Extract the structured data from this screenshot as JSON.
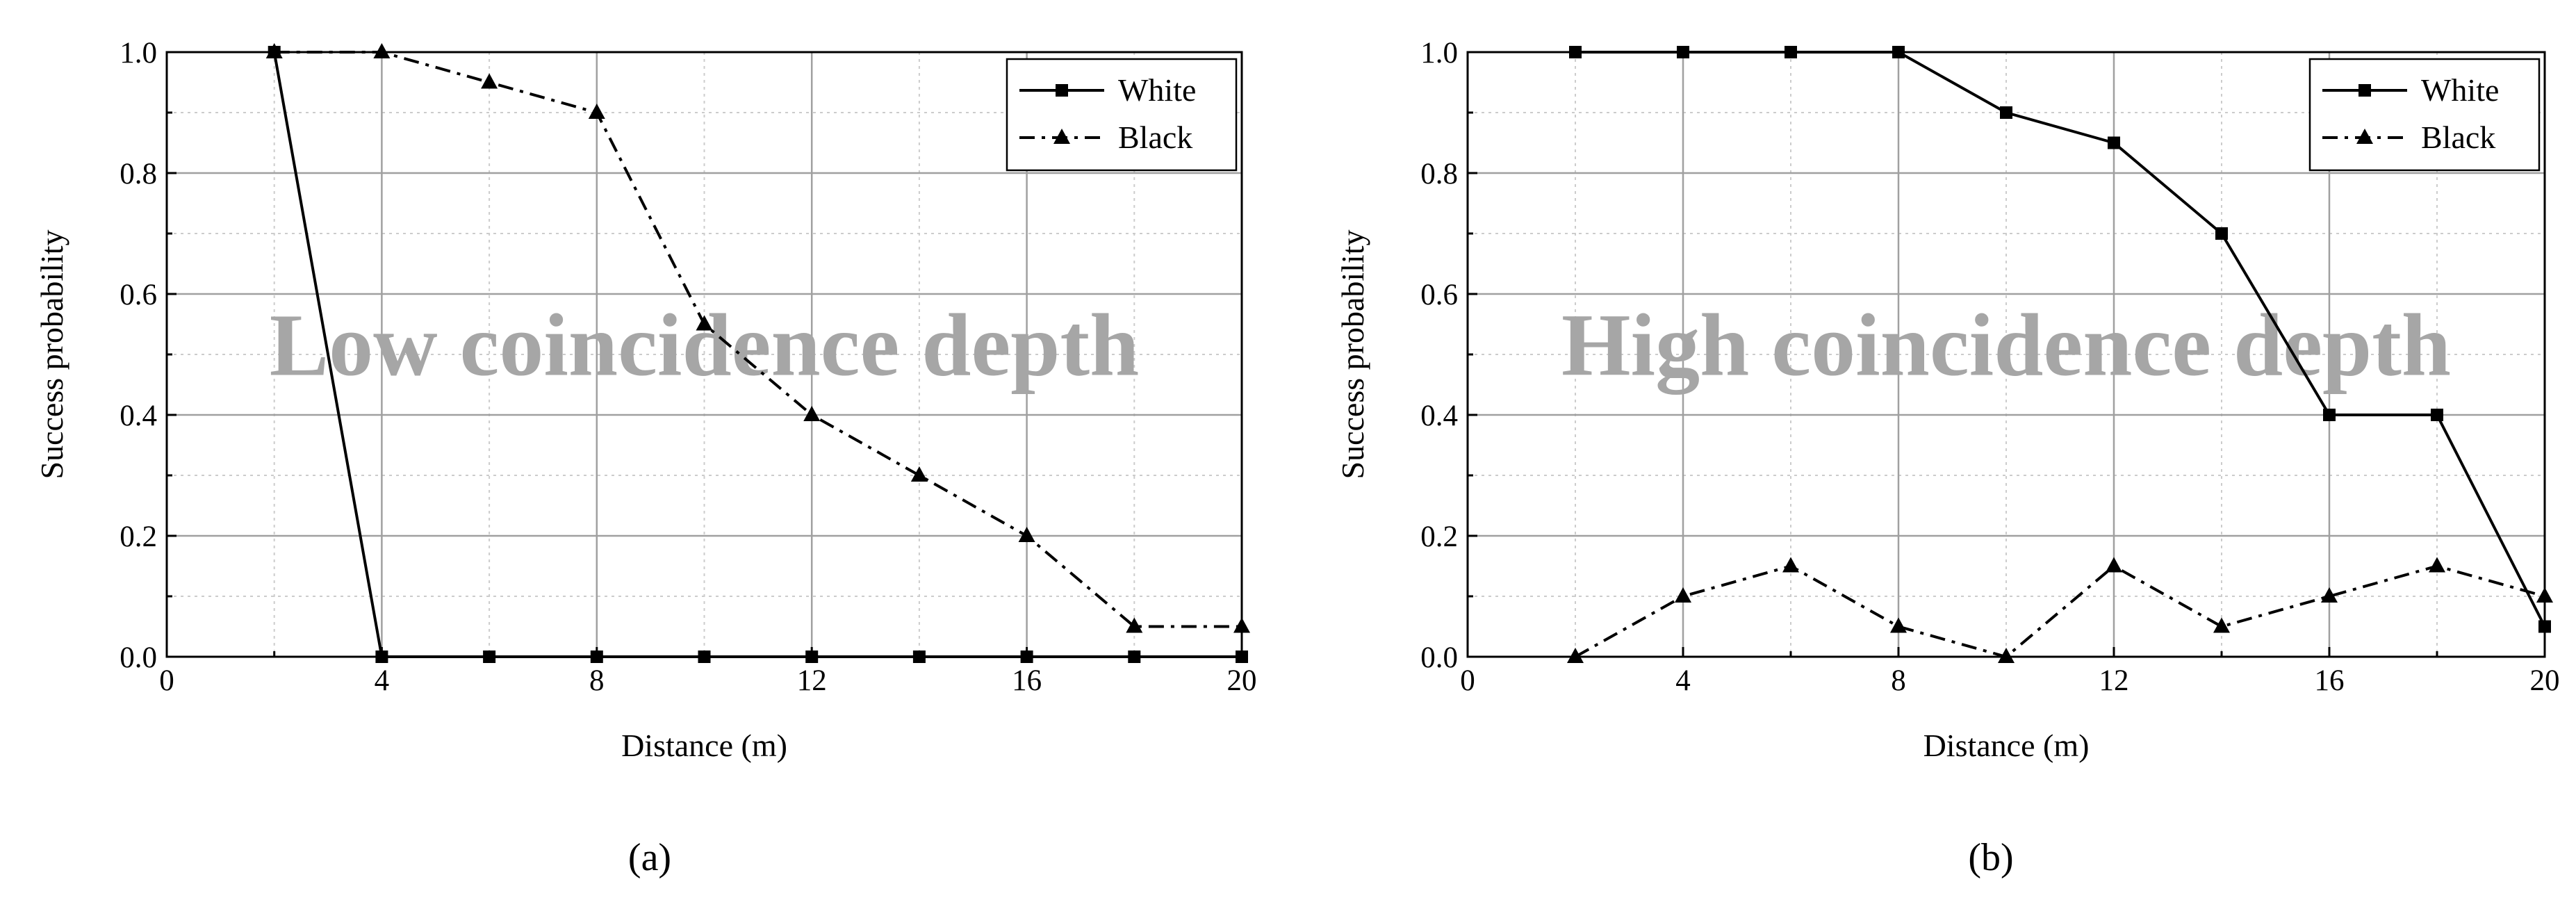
{
  "chart_data": [
    {
      "type": "line",
      "panel_label": "(a)",
      "overlay_text": "Low coincidence depth",
      "xlabel": "Distance (m)",
      "ylabel": "Success probability",
      "xlim": [
        0,
        20
      ],
      "ylim": [
        0,
        1.0
      ],
      "xticks": [
        0,
        4,
        8,
        12,
        16,
        20
      ],
      "yticks": [
        0.0,
        0.2,
        0.4,
        0.6,
        0.8,
        1.0
      ],
      "xtick_labels": [
        "0",
        "4",
        "8",
        "12",
        "16",
        "20"
      ],
      "ytick_labels": [
        "0.0",
        "0.2",
        "0.4",
        "0.6",
        "0.8",
        "1.0"
      ],
      "grid": true,
      "legend_position": "top-right",
      "series": [
        {
          "name": "White",
          "marker": "square",
          "line_style": "solid",
          "color": "#000000",
          "x": [
            2,
            4,
            6,
            8,
            10,
            12,
            14,
            16,
            18,
            20
          ],
          "y": [
            1.0,
            0.0,
            0.0,
            0.0,
            0.0,
            0.0,
            0.0,
            0.0,
            0.0,
            0.0
          ]
        },
        {
          "name": "Black",
          "marker": "triangle",
          "line_style": "dash-dot",
          "color": "#000000",
          "x": [
            2,
            4,
            6,
            8,
            10,
            12,
            14,
            16,
            18,
            20
          ],
          "y": [
            1.0,
            1.0,
            0.95,
            0.9,
            0.55,
            0.4,
            0.3,
            0.2,
            0.05,
            0.05
          ]
        }
      ]
    },
    {
      "type": "line",
      "panel_label": "(b)",
      "overlay_text": "High coincidence depth",
      "xlabel": "Distance (m)",
      "ylabel": "Success probability",
      "xlim": [
        0,
        20
      ],
      "ylim": [
        0,
        1.0
      ],
      "xticks": [
        0,
        4,
        8,
        12,
        16,
        20
      ],
      "yticks": [
        0.0,
        0.2,
        0.4,
        0.6,
        0.8,
        1.0
      ],
      "xtick_labels": [
        "0",
        "4",
        "8",
        "12",
        "16",
        "20"
      ],
      "ytick_labels": [
        "0.0",
        "0.2",
        "0.4",
        "0.6",
        "0.8",
        "1.0"
      ],
      "grid": true,
      "legend_position": "top-right",
      "series": [
        {
          "name": "White",
          "marker": "square",
          "line_style": "solid",
          "color": "#000000",
          "x": [
            2,
            4,
            6,
            8,
            10,
            12,
            14,
            16,
            18,
            20
          ],
          "y": [
            1.0,
            1.0,
            1.0,
            1.0,
            0.9,
            0.85,
            0.7,
            0.4,
            0.4,
            0.05
          ]
        },
        {
          "name": "Black",
          "marker": "triangle",
          "line_style": "dash-dot",
          "color": "#000000",
          "x": [
            2,
            4,
            6,
            8,
            10,
            12,
            14,
            16,
            18,
            20
          ],
          "y": [
            0.0,
            0.1,
            0.15,
            0.05,
            0.0,
            0.15,
            0.05,
            0.1,
            0.15,
            0.1
          ]
        }
      ]
    }
  ]
}
